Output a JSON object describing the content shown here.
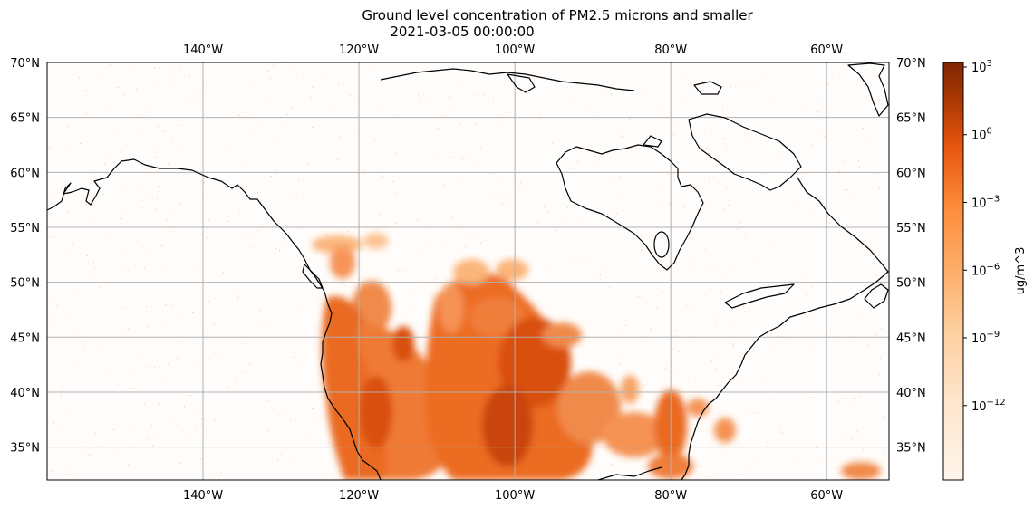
{
  "title": "Ground level concentration of PM2.5 microns and smaller",
  "subtitle": "2021-03-05 00:00:00",
  "colorbar": {
    "label": "ug/m^3",
    "tick_labels": [
      "10^3",
      "10^0",
      "10^-3",
      "10^-6",
      "10^-9",
      "10^-12"
    ],
    "scale": "log",
    "colormap": "Oranges",
    "color_low": "#fff5eb",
    "color_high": "#7f2704"
  },
  "map": {
    "extent_lon": [
      -160,
      -52
    ],
    "extent_lat": [
      32,
      70
    ],
    "projection": "PlateCarree",
    "grid": true,
    "lon_ticks": [
      {
        "value": -140,
        "label": "140°W"
      },
      {
        "value": -120,
        "label": "120°W"
      },
      {
        "value": -100,
        "label": "100°W"
      },
      {
        "value": -80,
        "label": "80°W"
      },
      {
        "value": -60,
        "label": "60°W"
      }
    ],
    "lat_ticks": [
      {
        "value": 70,
        "label": "70°N"
      },
      {
        "value": 65,
        "label": "65°N"
      },
      {
        "value": 60,
        "label": "60°N"
      },
      {
        "value": 55,
        "label": "55°N"
      },
      {
        "value": 50,
        "label": "50°N"
      },
      {
        "value": 45,
        "label": "45°N"
      },
      {
        "value": 40,
        "label": "40°N"
      },
      {
        "value": 35,
        "label": "35°N"
      }
    ],
    "plume_color": "#e85d0f",
    "coastline_color": "#000000",
    "grid_color": "#b0b0b0"
  }
}
